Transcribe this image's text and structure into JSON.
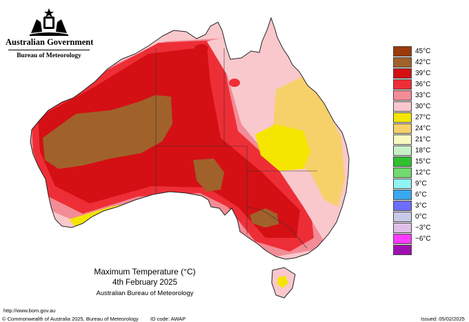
{
  "header": {
    "government": "Australian Government",
    "bureau": "Bureau of Meteorology"
  },
  "legend": [
    {
      "label": "45°C",
      "color": "#9b3a0a"
    },
    {
      "label": "42°C",
      "color": "#a0622a"
    },
    {
      "label": "39°C",
      "color": "#d41014"
    },
    {
      "label": "36°C",
      "color": "#ee2e36"
    },
    {
      "label": "33°C",
      "color": "#f28c96"
    },
    {
      "label": "30°C",
      "color": "#f9c8cc"
    },
    {
      "label": "27°C",
      "color": "#f4e600"
    },
    {
      "label": "24°C",
      "color": "#f6d16a"
    },
    {
      "label": "21°C",
      "color": "#f8f8c0"
    },
    {
      "label": "18°C",
      "color": "#c8f0c8"
    },
    {
      "label": "15°C",
      "color": "#30c030"
    },
    {
      "label": "12°C",
      "color": "#70dc70"
    },
    {
      "label": "9°C",
      "color": "#90f4f4"
    },
    {
      "label": "6°C",
      "color": "#3aa8f0"
    },
    {
      "label": "3°C",
      "color": "#6d6dff"
    },
    {
      "label": "0°C",
      "color": "#c8c8e8"
    },
    {
      "label": "−3°C",
      "color": "#e0c0e8"
    },
    {
      "label": "−6°C",
      "color": "#ff3cff"
    },
    {
      "label": "",
      "color": "#a010b0"
    }
  ],
  "caption": {
    "line1": "Maximum Temperature (°C)",
    "line2": "4th February 2025",
    "line3": "Australian Bureau of Meteorology"
  },
  "footer": {
    "url": "http://www.bom.gov.au",
    "copyright": "© Commonwealth of Australia 2025, Bureau of Meteorology",
    "id_code": "ID code: AWAP",
    "issued": "Issued: 05/02/2025"
  }
}
